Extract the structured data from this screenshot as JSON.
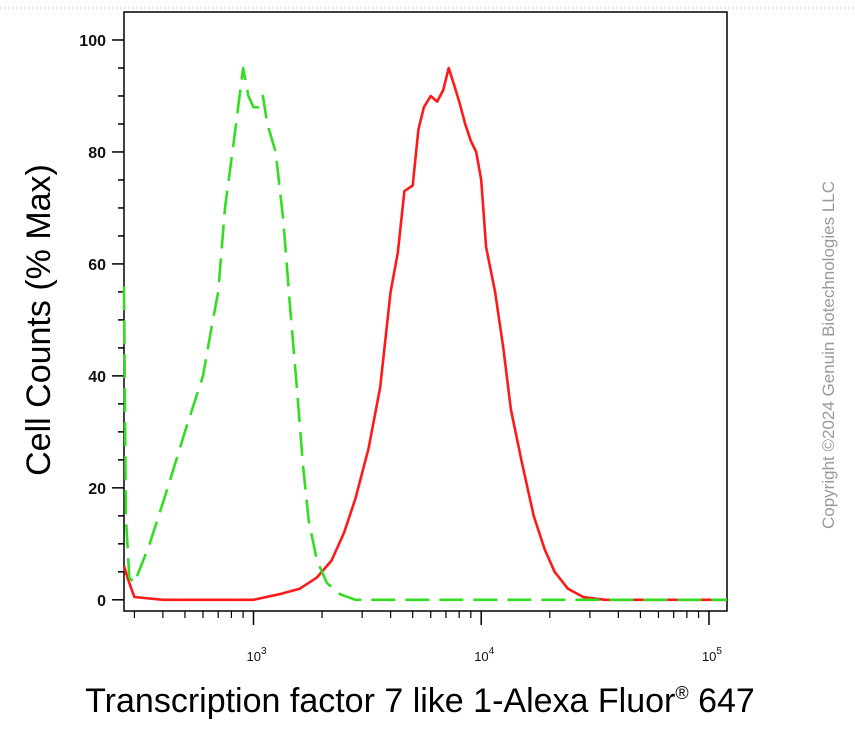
{
  "chart_data": {
    "type": "line",
    "xlabel": "Transcription factor 7 like 1-Alexa Fluor",
    "xlabel_sup": "®",
    "xlabel_tail": " 647",
    "ylabel": "Cell Counts (% Max)",
    "x_scale": "log",
    "xlim": [
      270,
      120000
    ],
    "ylim": [
      -2,
      105
    ],
    "y_ticks": [
      "100",
      "80",
      "60",
      "40",
      "20",
      "0"
    ],
    "y_tick_values": [
      100,
      80,
      60,
      40,
      20,
      0
    ],
    "x_ticks": [
      {
        "base": "10",
        "exp": "3",
        "value": 1000
      },
      {
        "base": "10",
        "exp": "4",
        "value": 10000
      },
      {
        "base": "10",
        "exp": "5",
        "value": 100000
      }
    ],
    "grid": false,
    "series": [
      {
        "color": "#ff1a1a",
        "style": "solid",
        "points": [
          [
            270,
            6
          ],
          [
            285,
            3
          ],
          [
            300,
            0.5
          ],
          [
            400,
            0
          ],
          [
            600,
            0
          ],
          [
            800,
            0
          ],
          [
            1000,
            0
          ],
          [
            1300,
            1
          ],
          [
            1600,
            2
          ],
          [
            1900,
            4
          ],
          [
            2200,
            7
          ],
          [
            2500,
            12
          ],
          [
            2800,
            18
          ],
          [
            3200,
            27
          ],
          [
            3600,
            38
          ],
          [
            4000,
            55
          ],
          [
            4300,
            62
          ],
          [
            4600,
            73
          ],
          [
            5000,
            74
          ],
          [
            5300,
            84
          ],
          [
            5600,
            88
          ],
          [
            6000,
            90
          ],
          [
            6400,
            89
          ],
          [
            6800,
            91
          ],
          [
            7200,
            95
          ],
          [
            7600,
            92
          ],
          [
            8000,
            89
          ],
          [
            8500,
            85
          ],
          [
            9000,
            82
          ],
          [
            9500,
            80
          ],
          [
            10000,
            75
          ],
          [
            10500,
            63
          ],
          [
            11500,
            55
          ],
          [
            12500,
            45
          ],
          [
            13500,
            34
          ],
          [
            15000,
            25
          ],
          [
            17000,
            15
          ],
          [
            19000,
            9
          ],
          [
            21000,
            5
          ],
          [
            24000,
            2
          ],
          [
            28000,
            0.5
          ],
          [
            35000,
            0
          ],
          [
            60000,
            0
          ],
          [
            120000,
            0
          ]
        ]
      },
      {
        "color": "#33dd22",
        "style": "dashed",
        "points": [
          [
            270,
            56
          ],
          [
            275,
            15
          ],
          [
            285,
            4
          ],
          [
            300,
            3
          ],
          [
            350,
            10
          ],
          [
            420,
            20
          ],
          [
            500,
            30
          ],
          [
            600,
            40
          ],
          [
            650,
            48
          ],
          [
            700,
            55
          ],
          [
            750,
            70
          ],
          [
            820,
            82
          ],
          [
            900,
            95
          ],
          [
            950,
            90
          ],
          [
            1000,
            88
          ],
          [
            1050,
            88
          ],
          [
            1100,
            90
          ],
          [
            1150,
            85
          ],
          [
            1250,
            80
          ],
          [
            1350,
            68
          ],
          [
            1450,
            52
          ],
          [
            1550,
            38
          ],
          [
            1650,
            24
          ],
          [
            1750,
            14
          ],
          [
            1900,
            7
          ],
          [
            2100,
            3
          ],
          [
            2400,
            1
          ],
          [
            2800,
            0
          ],
          [
            4000,
            0
          ],
          [
            10000,
            0
          ],
          [
            50000,
            0
          ],
          [
            120000,
            0
          ]
        ]
      }
    ]
  },
  "copyright": "Copyright ©2024 Genuin Biotechnologies LLC"
}
